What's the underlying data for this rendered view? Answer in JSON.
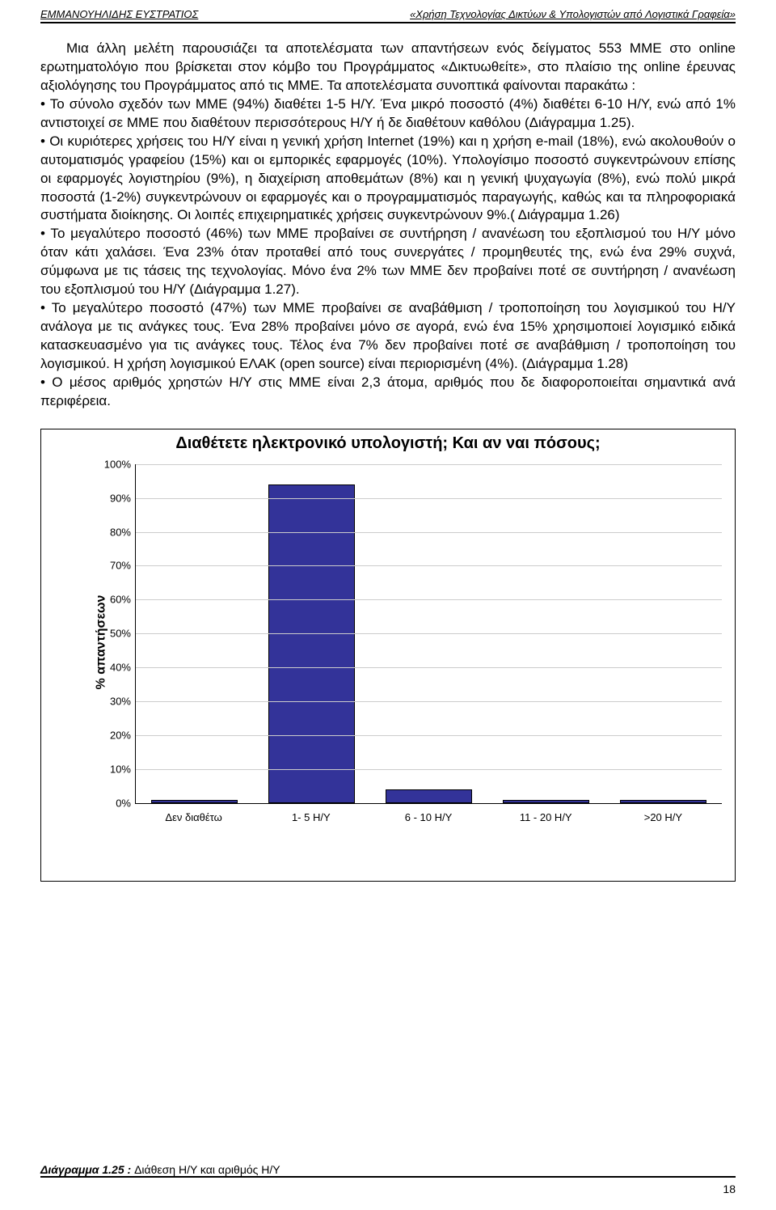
{
  "header": {
    "left": "ΕΜΜΑΝΟΥΗΛΙΔΗΣ ΕΥΣΤΡΑΤΙΟΣ",
    "right": "«Χρήση Τεχνολογίας Δικτύων & Υπολογιστών από Λογιστικά Γραφεία»"
  },
  "body": {
    "p1": "Μια άλλη μελέτη παρουσιάζει τα αποτελέσματα των απαντήσεων ενός δείγματος 553 ΜΜΕ στο online ερωτηματολόγιο που βρίσκεται στον κόμβο του Προγράμματος «Δικτυωθείτε», στο πλαίσιο της online έρευνας αξιολόγησης του Προγράμματος από τις ΜΜΕ. Τα αποτελέσματα συνοπτικά φαίνονται παρακάτω :",
    "b1": "• Το σύνολο σχεδόν των ΜΜΕ (94%) διαθέτει 1-5 Η/Υ. Ένα μικρό ποσοστό (4%) διαθέτει 6-10 Η/Υ, ενώ από 1% αντιστοιχεί σε ΜΜΕ που διαθέτουν περισσότερους Η/Υ ή δε διαθέτουν καθόλου (Διάγραμμα 1.25).",
    "b2": "• Οι κυριότερες χρήσεις του Η/Υ είναι η γενική χρήση Internet (19%) και η χρήση e-mail (18%), ενώ ακολουθούν ο αυτοματισμός γραφείου (15%) και οι εμπορικές εφαρμογές (10%). Υπολογίσιμο ποσοστό συγκεντρώνουν επίσης οι εφαρμογές λογιστηρίου (9%), η διαχείριση αποθεμάτων (8%) και η γενική ψυχαγωγία (8%), ενώ πολύ μικρά ποσοστά (1-2%) συγκεντρώνουν οι εφαρμογές και ο προγραμματισμός παραγωγής, καθώς και τα πληροφοριακά συστήματα διοίκησης. Οι λοιπές επιχειρηματικές χρήσεις συγκεντρώνουν 9%.( Διάγραμμα 1.26)",
    "b3": "• Το μεγαλύτερο ποσοστό (46%) των ΜΜΕ προβαίνει σε συντήρηση / ανανέωση του εξοπλισμού του Η/Υ μόνο όταν κάτι χαλάσει. Ένα 23% όταν προταθεί από τους συνεργάτες / προμηθευτές της, ενώ ένα 29% συχνά, σύμφωνα με τις τάσεις της τεχνολογίας. Μόνο ένα 2% των ΜΜΕ δεν προβαίνει ποτέ σε συντήρηση / ανανέωση του εξοπλισμού του Η/Υ (Διάγραμμα 1.27).",
    "b4": "• Το μεγαλύτερο ποσοστό (47%) των ΜΜΕ προβαίνει σε αναβάθμιση / τροποποίηση του λογισμικού του Η/Υ ανάλογα με τις ανάγκες τους. Ένα 28% προβαίνει μόνο σε αγορά, ενώ ένα 15% χρησιμοποιεί λογισμικό ειδικά κατασκευασμένο για τις ανάγκες τους. Τέλος ένα 7% δεν προβαίνει ποτέ σε αναβάθμιση / τροποποίηση του λογισμικού. Η χρήση λογισμικού ΕΛΑΚ (open source) είναι περιορισμένη (4%). (Διάγραμμα 1.28)",
    "b5": "• Ο μέσος αριθμός χρηστών Η/Υ στις ΜΜΕ είναι 2,3 άτομα, αριθμός που δε διαφοροποιείται σημαντικά ανά περιφέρεια."
  },
  "chart": {
    "type": "bar",
    "title": "Διαθέτετε ηλεκτρονικό υπολογιστή; Και αν ναι πόσους;",
    "yaxis_label": "% απαντήσεων",
    "categories": [
      "Δεν διαθέτω",
      "1- 5 Η/Υ",
      "6 - 10 Η/Υ",
      "11 - 20 Η/Υ",
      ">20 Η/Υ"
    ],
    "values": [
      1,
      94,
      4,
      1,
      1
    ],
    "bar_color": "#333399",
    "bar_border": "#000000",
    "background_color": "#ffffff",
    "grid_color": "#cccccc",
    "ylim": [
      0,
      100
    ],
    "ytick_step": 10,
    "ytick_format": "percent",
    "title_fontsize": 20,
    "label_fontsize": 16,
    "tick_fontsize": 13
  },
  "caption": {
    "bold": "Διάγραμμα 1.25 : ",
    "text": "Διάθεση Η/Υ και αριθμός Η/Υ"
  },
  "page_number": "18"
}
